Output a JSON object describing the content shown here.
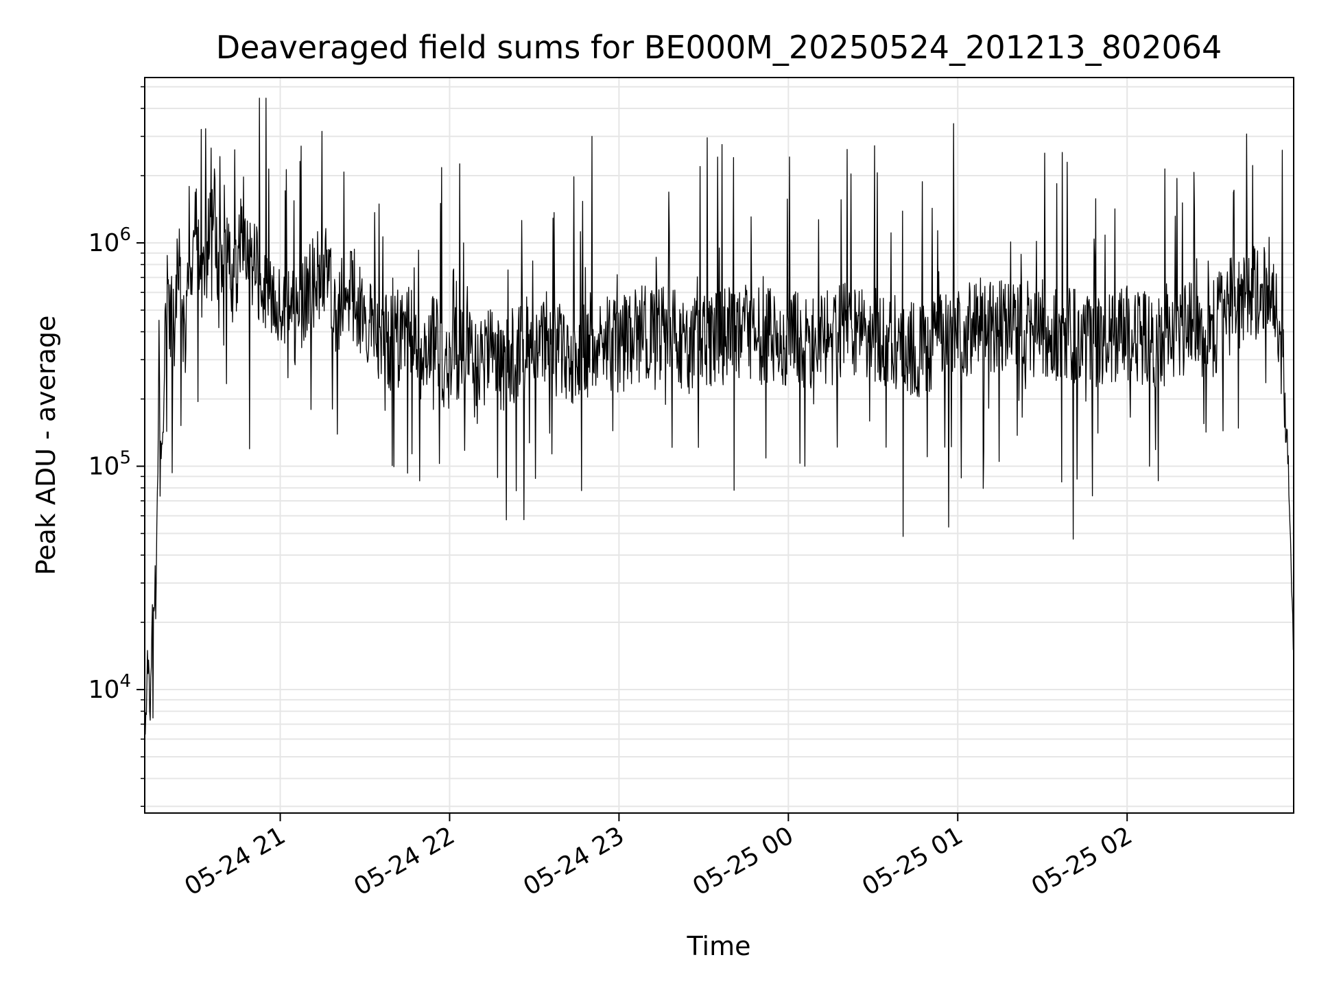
{
  "chart_data": {
    "type": "line",
    "title": "Deaveraged field sums for BE000M_20250524_201213_802064",
    "xlabel": "Time",
    "ylabel": "Peak ADU - average",
    "yscale": "log",
    "ylim": [
      2800,
      5500000
    ],
    "xlim": [
      "2025-05-24T20:12",
      "2025-05-25T02:59"
    ],
    "grid": true,
    "line_color": "#000000",
    "grid_color": "#e6e6e6",
    "x_ticks": [
      {
        "value": "2025-05-24T21:00",
        "label": "05-24 21"
      },
      {
        "value": "2025-05-24T22:00",
        "label": "05-24 22"
      },
      {
        "value": "2025-05-24T23:00",
        "label": "05-24 23"
      },
      {
        "value": "2025-05-25T00:00",
        "label": "05-25 00"
      },
      {
        "value": "2025-05-25T01:00",
        "label": "05-25 01"
      },
      {
        "value": "2025-05-25T02:00",
        "label": "05-25 02"
      }
    ],
    "y_ticks": [
      {
        "value": 10000,
        "base": "10",
        "exp": "4"
      },
      {
        "value": 100000,
        "base": "10",
        "exp": "5"
      },
      {
        "value": 1000000,
        "base": "10",
        "exp": "6"
      }
    ],
    "series": [
      {
        "x": [
          "2025-05-24T20:12",
          "2025-05-24T20:13",
          "2025-05-24T20:14",
          "2025-05-24T20:15",
          "2025-05-24T20:16",
          "2025-05-24T20:17",
          "2025-05-24T20:18",
          "2025-05-24T20:20",
          "2025-05-24T20:22",
          "2025-05-24T20:24",
          "2025-05-24T20:26",
          "2025-05-24T20:28",
          "2025-05-24T20:30",
          "2025-05-24T20:32",
          "2025-05-24T20:34",
          "2025-05-24T20:36",
          "2025-05-24T20:38",
          "2025-05-24T20:40",
          "2025-05-24T20:43",
          "2025-05-24T20:46",
          "2025-05-24T20:50",
          "2025-05-24T20:55",
          "2025-05-24T21:00",
          "2025-05-24T21:05",
          "2025-05-24T21:10",
          "2025-05-24T21:15",
          "2025-05-24T21:20",
          "2025-05-24T21:25",
          "2025-05-24T21:28",
          "2025-05-24T21:30",
          "2025-05-24T21:35",
          "2025-05-24T21:40",
          "2025-05-24T21:45",
          "2025-05-24T21:50",
          "2025-05-24T21:55",
          "2025-05-24T21:58",
          "2025-05-24T22:00",
          "2025-05-24T22:05",
          "2025-05-24T22:10",
          "2025-05-24T22:15",
          "2025-05-24T22:20",
          "2025-05-24T22:25",
          "2025-05-24T22:30",
          "2025-05-24T22:35",
          "2025-05-24T22:42",
          "2025-05-24T22:50",
          "2025-05-24T23:00",
          "2025-05-24T23:10",
          "2025-05-24T23:20",
          "2025-05-24T23:30",
          "2025-05-24T23:40",
          "2025-05-24T23:50",
          "2025-05-25T00:00",
          "2025-05-25T00:10",
          "2025-05-25T00:20",
          "2025-05-25T00:30",
          "2025-05-25T00:40",
          "2025-05-25T00:50",
          "2025-05-25T01:00",
          "2025-05-25T01:10",
          "2025-05-25T01:20",
          "2025-05-25T01:30",
          "2025-05-25T01:40",
          "2025-05-25T01:50",
          "2025-05-25T02:00",
          "2025-05-25T02:05",
          "2025-05-25T02:10",
          "2025-05-25T02:20",
          "2025-05-25T02:30",
          "2025-05-25T02:35",
          "2025-05-25T02:40",
          "2025-05-25T02:45",
          "2025-05-25T02:50",
          "2025-05-25T02:53",
          "2025-05-25T02:55",
          "2025-05-25T02:57",
          "2025-05-25T02:59"
        ],
        "y": [
          7000,
          12000,
          9000,
          30000,
          20000,
          300000,
          150000,
          600000,
          300000,
          1000000,
          400000,
          600000,
          1500000,
          500000,
          900000,
          2000000,
          600000,
          1200000,
          700000,
          900000,
          800000,
          600000,
          500000,
          450000,
          600000,
          800000,
          500000,
          600000,
          550000,
          450000,
          400000,
          350000,
          420000,
          300000,
          450000,
          250000,
          300000,
          350000,
          300000,
          320000,
          280000,
          350000,
          400000,
          360000,
          300000,
          380000,
          350000,
          400000,
          380000,
          350000,
          400000,
          380000,
          380000,
          350000,
          400000,
          380000,
          350000,
          330000,
          400000,
          450000,
          400000,
          420000,
          380000,
          350000,
          400000,
          380000,
          350000,
          420000,
          400000,
          500000,
          550000,
          600000,
          700000,
          500000,
          300000,
          100000,
          15000
        ]
      }
    ]
  }
}
